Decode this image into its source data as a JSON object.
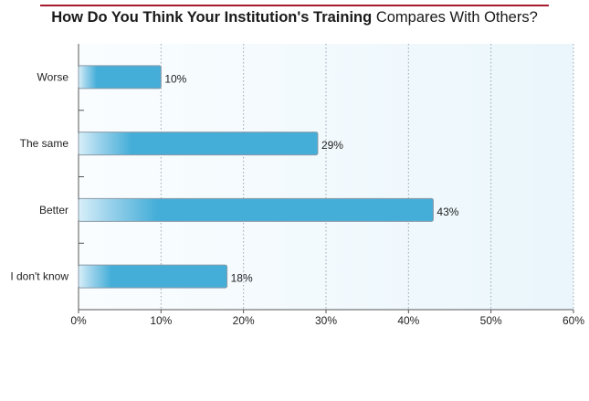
{
  "title": {
    "bold_part": "How Do You Think Your Institution's Training",
    "light_part": "Compares With Others?"
  },
  "colors": {
    "accent_rule": "#a6192e",
    "bar": "#45aed8",
    "bar_light": "#d8eff9",
    "bar_border": "#8a9aa6",
    "plot_bg": "#eef7fc"
  },
  "chart_data": {
    "type": "bar",
    "orientation": "horizontal",
    "categories": [
      "Worse",
      "The same",
      "Better",
      "I don't know"
    ],
    "values": [
      10,
      29,
      43,
      18
    ],
    "data_labels": [
      "10%",
      "29%",
      "43%",
      "18%"
    ],
    "xlim": [
      0,
      60
    ],
    "xticks": [
      0,
      10,
      20,
      30,
      40,
      50,
      60
    ],
    "xtick_labels": [
      "0%",
      "10%",
      "20%",
      "30%",
      "40%",
      "50%",
      "60%"
    ],
    "grid": "vertical dotted",
    "legend": "none"
  }
}
